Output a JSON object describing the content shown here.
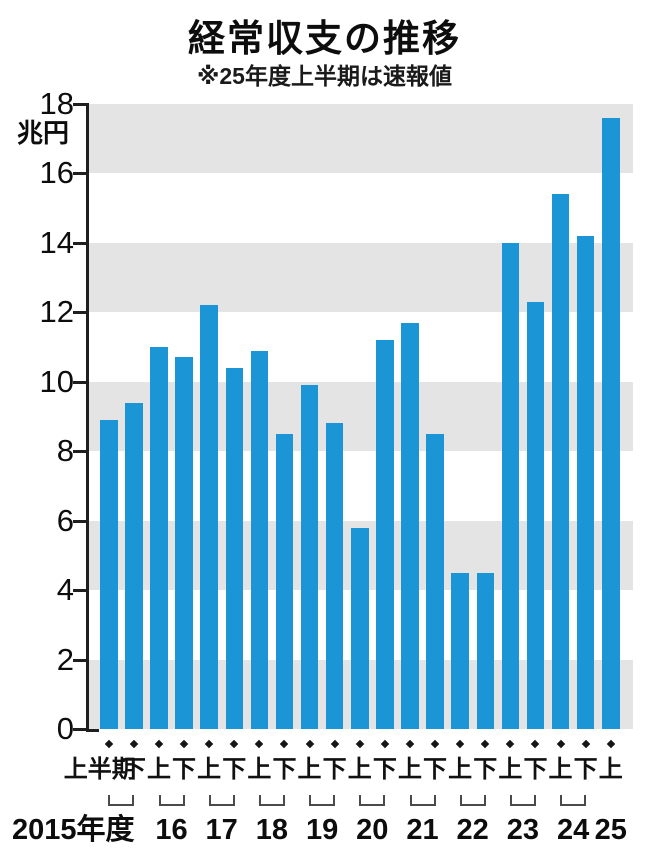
{
  "header": {
    "title": "経常収支の推移",
    "subtitle": "※25年度上半期は速報値"
  },
  "chart_data": {
    "type": "bar",
    "title": "経常収支の推移",
    "subtitle": "※25年度上半期は速報値",
    "unit_label": "兆円",
    "ylabel": "兆円",
    "ylim": [
      0,
      18
    ],
    "ytick_interval": 2,
    "yticks": [
      0,
      2,
      4,
      6,
      8,
      10,
      12,
      14,
      16,
      18
    ],
    "grid": "alternating horizontal gray bands every 2 units, gray topmost (18-16)",
    "legend": "none",
    "x_half_labels": [
      "上半期",
      "下",
      "上",
      "下",
      "上",
      "下",
      "上",
      "下",
      "上",
      "下",
      "上",
      "下",
      "上",
      "下",
      "上",
      "下",
      "上",
      "下",
      "上",
      "下",
      "上"
    ],
    "values": [
      8.9,
      9.4,
      11.0,
      10.7,
      12.2,
      10.4,
      10.9,
      8.5,
      9.9,
      8.8,
      5.8,
      11.2,
      11.7,
      8.5,
      4.5,
      4.5,
      14.0,
      12.3,
      15.4,
      14.2,
      17.6
    ],
    "year_groups": [
      {
        "label": "2015年度",
        "bars": [
          0,
          1
        ]
      },
      {
        "label": "16",
        "bars": [
          2,
          3
        ]
      },
      {
        "label": "17",
        "bars": [
          4,
          5
        ]
      },
      {
        "label": "18",
        "bars": [
          6,
          7
        ]
      },
      {
        "label": "19",
        "bars": [
          8,
          9
        ]
      },
      {
        "label": "20",
        "bars": [
          10,
          11
        ]
      },
      {
        "label": "21",
        "bars": [
          12,
          13
        ]
      },
      {
        "label": "22",
        "bars": [
          14,
          15
        ]
      },
      {
        "label": "23",
        "bars": [
          16,
          17
        ]
      },
      {
        "label": "24",
        "bars": [
          18,
          19
        ]
      },
      {
        "label": "25",
        "bars": [
          20
        ]
      }
    ],
    "colors": {
      "bar": "#1b95d5",
      "stripe": "#e4e4e4",
      "axis": "#1f1f1f",
      "text": "#0d0d0d",
      "background": "#ffffff"
    }
  }
}
